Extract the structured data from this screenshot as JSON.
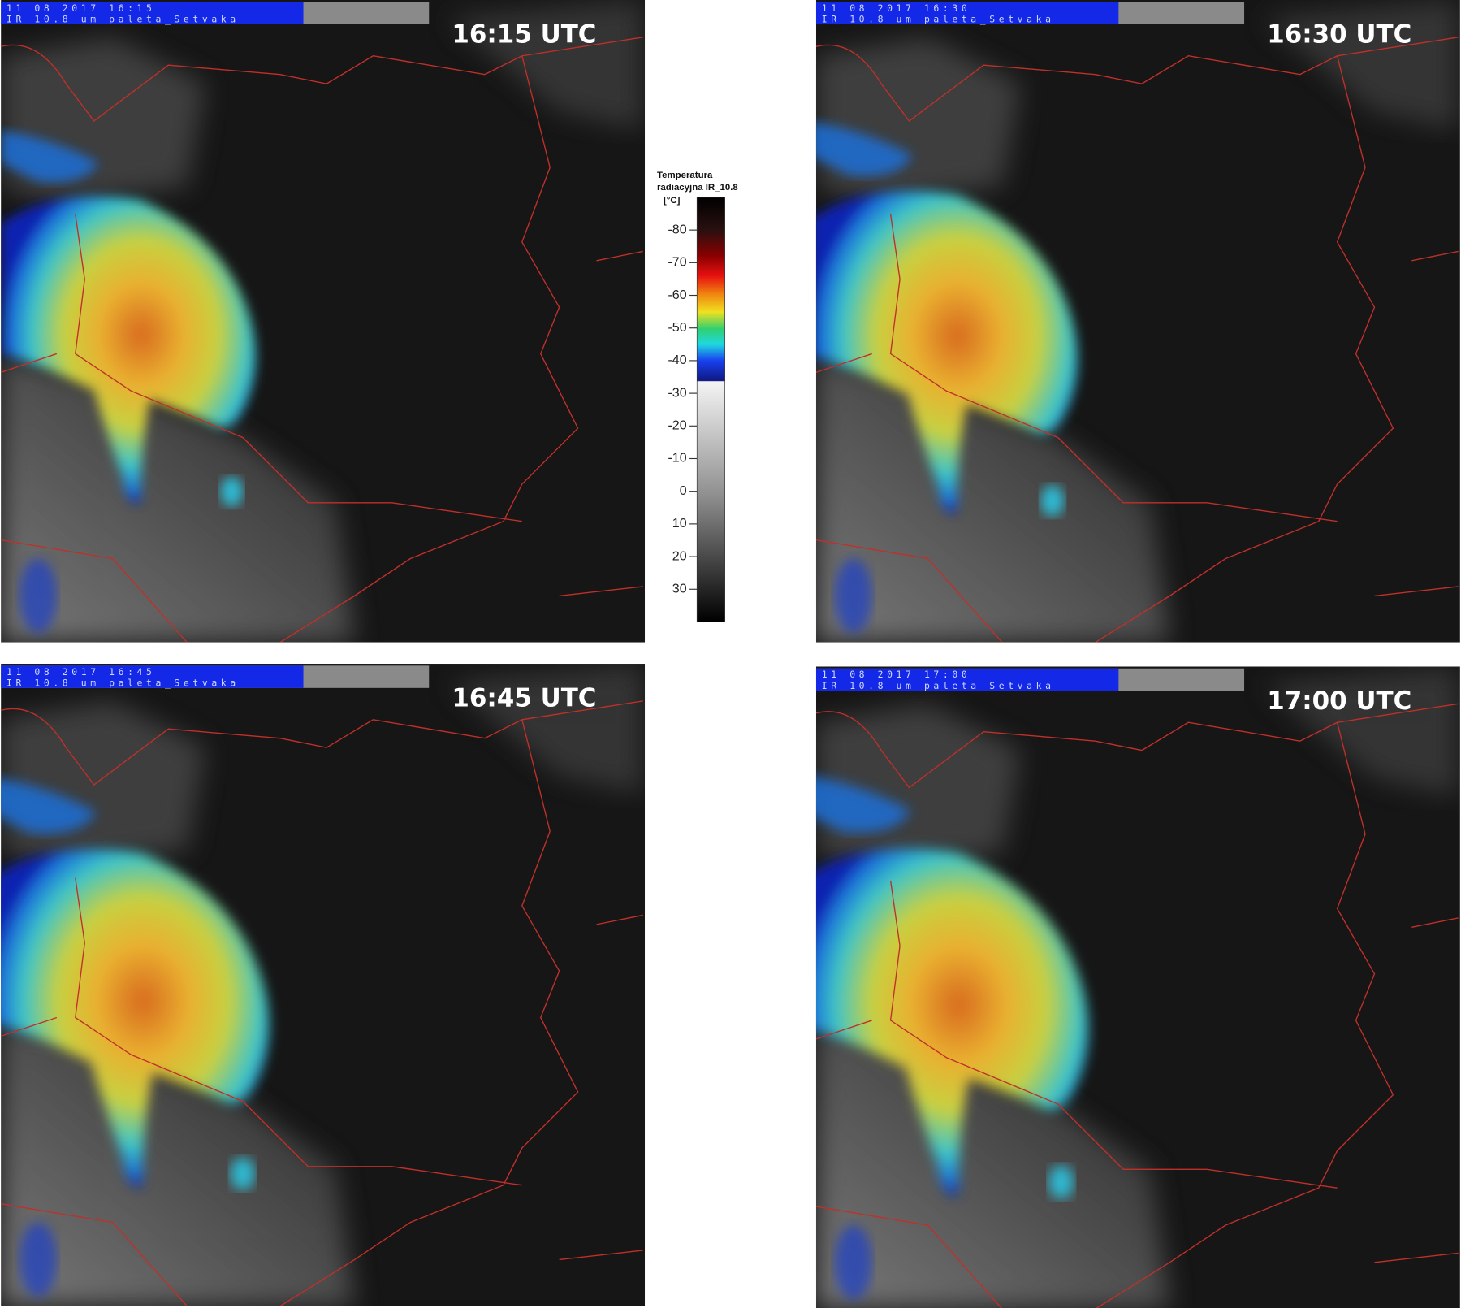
{
  "panels": [
    {
      "label": "16:15 UTC",
      "header_date": "11 08 2017 16:15",
      "header_product": "IR 10.8 um paleta_Setvaka"
    },
    {
      "label": "16:30 UTC",
      "header_date": "11 08 2017 16:30",
      "header_product": "IR 10.8 um paleta_Setvaka"
    },
    {
      "label": "16:45 UTC",
      "header_date": "11 08 2017 16:45",
      "header_product": "IR 10.8 um paleta_Setvaka"
    },
    {
      "label": "17:00 UTC",
      "header_date": "11 08 2017 17:00",
      "header_product": "IR 10.8 um paleta_Setvaka"
    }
  ],
  "colorbar": {
    "title": [
      "Temperatura",
      "radiacyjna IR_10.8"
    ],
    "unit": "[°C]",
    "range": [
      -90,
      40
    ],
    "ticks": [
      -80,
      -70,
      -60,
      -50,
      -40,
      -30,
      -20,
      -10,
      0,
      10,
      20,
      30
    ]
  }
}
